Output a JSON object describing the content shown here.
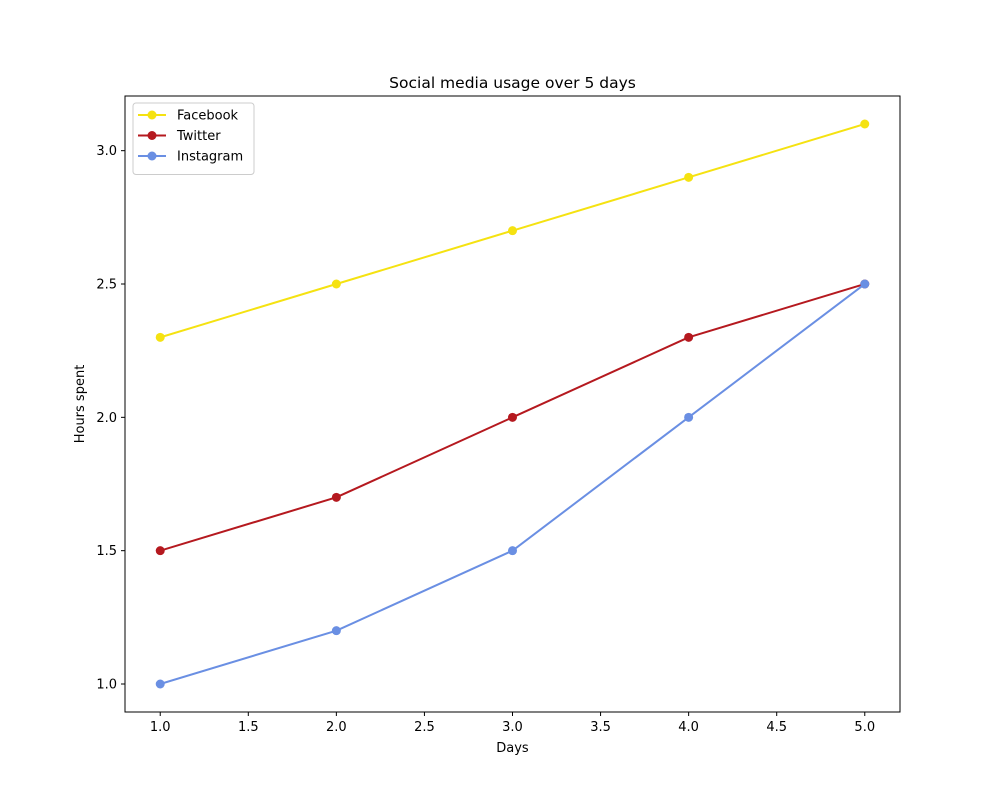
{
  "chart_data": {
    "type": "line",
    "title": "Social media usage over 5 days",
    "xlabel": "Days",
    "ylabel": "Hours spent",
    "x": [
      1,
      2,
      3,
      4,
      5
    ],
    "xlim": [
      0.8,
      5.2
    ],
    "ylim": [
      0.895,
      3.205
    ],
    "xticks": [
      1.0,
      1.5,
      2.0,
      2.5,
      3.0,
      3.5,
      4.0,
      4.5,
      5.0
    ],
    "xtick_labels": [
      "1.0",
      "1.5",
      "2.0",
      "2.5",
      "3.0",
      "3.5",
      "4.0",
      "4.5",
      "5.0"
    ],
    "yticks": [
      1.0,
      1.5,
      2.0,
      2.5,
      3.0
    ],
    "ytick_labels": [
      "1.0",
      "1.5",
      "2.0",
      "2.5",
      "3.0"
    ],
    "grid": false,
    "legend_position": "upper-left",
    "series": [
      {
        "name": "Facebook",
        "color": "#f5e211",
        "values": [
          2.3,
          2.5,
          2.7,
          2.9,
          3.1
        ]
      },
      {
        "name": "Twitter",
        "color": "#b5191f",
        "values": [
          1.5,
          1.7,
          2.0,
          2.3,
          2.5
        ]
      },
      {
        "name": "Instagram",
        "color": "#6a8fe3",
        "values": [
          1.0,
          1.2,
          1.5,
          2.0,
          2.5
        ]
      }
    ]
  }
}
